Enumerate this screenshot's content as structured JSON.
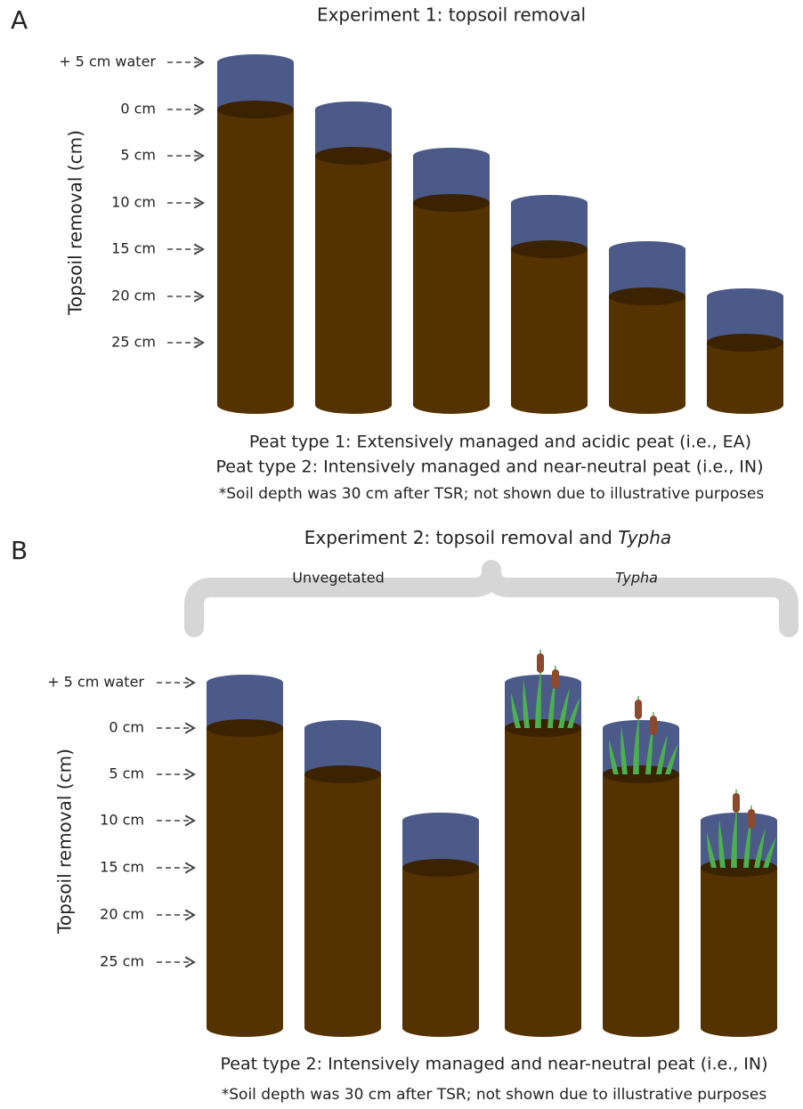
{
  "panel_a": {
    "letter": "A",
    "title": "Experiment 1: topsoil removal",
    "y_axis_label": "Topsoil removal (cm)",
    "levels": [
      "+ 5 cm water",
      "0 cm",
      "5 cm",
      "10 cm",
      "15 cm",
      "20 cm",
      "25 cm"
    ],
    "notes": [
      "Peat type 1: Extensively managed and acidic peat (i.e., EA)",
      "Peat type 2: Intensively managed and near-neutral peat (i.e., IN)",
      "*Soil depth was 30 cm after TSR; not shown due to illustrative purposes"
    ]
  },
  "panel_b": {
    "letter": "B",
    "title": [
      "Experiment 2: topsoil removal and ",
      "Typha"
    ],
    "groups": [
      "Unvegetated",
      "Typha"
    ],
    "y_axis_label": "Topsoil removal (cm)",
    "levels": [
      "+ 5 cm water",
      "0 cm",
      "5 cm",
      "10 cm",
      "15 cm",
      "20 cm",
      "25 cm"
    ],
    "notes": [
      "Peat type 2: Intensively managed and near-neutral peat (i.e., IN)",
      "*Soil depth was 30 cm after TSR; not shown due to illustrative purposes"
    ]
  }
}
